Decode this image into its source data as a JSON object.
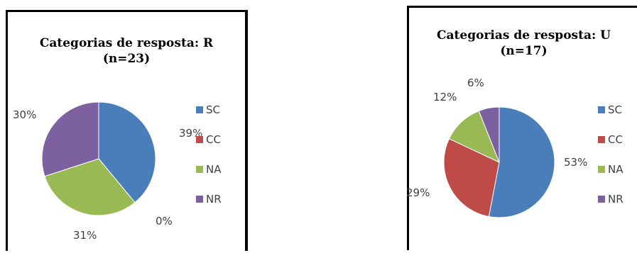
{
  "chart_data": [
    {
      "type": "pie",
      "title": "Categorias de resposta: R",
      "subtitle": "(n=23)",
      "categories": [
        "SC",
        "CC",
        "NA",
        "NR"
      ],
      "values": [
        39,
        0,
        31,
        30
      ],
      "labels": [
        "39%",
        "0%",
        "31%",
        "30%"
      ],
      "colors": [
        "#4a7ebb",
        "#be4b48",
        "#98b954",
        "#7d60a0"
      ],
      "legend": "right"
    },
    {
      "type": "pie",
      "title": "Categorias de resposta: U",
      "subtitle": "(n=17)",
      "categories": [
        "SC",
        "CC",
        "NA",
        "NR"
      ],
      "values": [
        53,
        29,
        12,
        6
      ],
      "labels": [
        "53%",
        "29%",
        "12%",
        "6%"
      ],
      "colors": [
        "#4a7ebb",
        "#be4b48",
        "#98b954",
        "#7d60a0"
      ],
      "legend": "right"
    }
  ]
}
